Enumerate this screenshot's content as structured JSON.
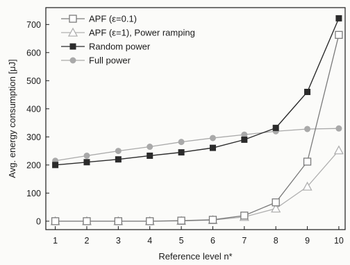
{
  "chart_data": {
    "type": "line",
    "title": "",
    "xlabel": "Reference level n*",
    "ylabel": "Avg. energy consumption [μJ]",
    "x": [
      1,
      2,
      3,
      4,
      5,
      6,
      7,
      8,
      9,
      10
    ],
    "xlim": [
      0.7,
      10.2
    ],
    "ylim": [
      -30,
      760
    ],
    "xticks": [
      1,
      2,
      3,
      4,
      5,
      6,
      7,
      8,
      9,
      10
    ],
    "yticks": [
      0,
      100,
      200,
      300,
      400,
      500,
      600,
      700
    ],
    "grid": false,
    "legend_position": "top-left",
    "series": [
      {
        "name": "APF (ε=0.1)",
        "marker": "open-square",
        "color": "#7a7a7a",
        "values": [
          0,
          0,
          0,
          0,
          2,
          5,
          20,
          67,
          212,
          663
        ]
      },
      {
        "name": "APF (ε=1), Power ramping",
        "marker": "open-triangle",
        "color": "#b0b0b0",
        "values": [
          0,
          0,
          0,
          0,
          1,
          4,
          15,
          45,
          123,
          252
        ]
      },
      {
        "name": "Random power",
        "marker": "filled-square",
        "color": "#2b2b2b",
        "values": [
          200,
          210,
          220,
          233,
          245,
          261,
          290,
          332,
          460,
          722
        ]
      },
      {
        "name": "Full power",
        "marker": "filled-circle",
        "color": "#a9a9a9",
        "values": [
          215,
          233,
          250,
          265,
          282,
          296,
          308,
          320,
          328,
          330
        ]
      }
    ]
  }
}
